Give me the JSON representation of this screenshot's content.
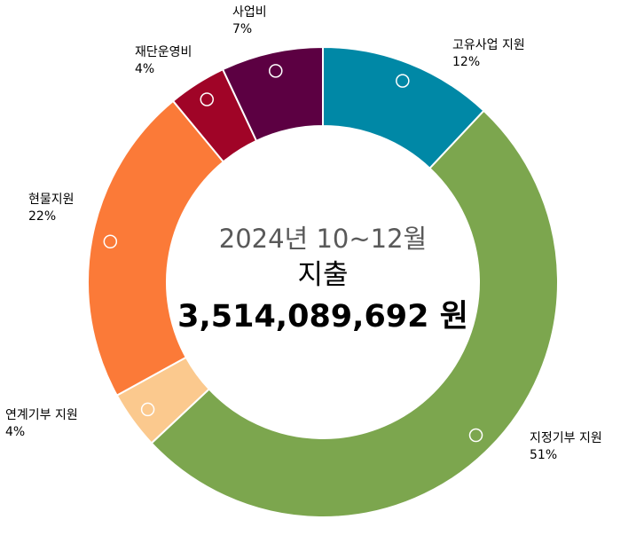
{
  "chart_data": {
    "type": "pie",
    "style": "donut",
    "center": {
      "period": "2024년 10~12월",
      "subtitle": "지출",
      "total": "3,514,089,692 원"
    },
    "slices": [
      {
        "label": "고유사업 지원",
        "value": 12,
        "value_label": "12%",
        "color": "#0088A6"
      },
      {
        "label": "지정기부 지원",
        "value": 51,
        "value_label": "51%",
        "color": "#7CA64E"
      },
      {
        "label": "연계기부 지원",
        "value": 4,
        "value_label": "4%",
        "color": "#FBC98E"
      },
      {
        "label": "현물지원",
        "value": 22,
        "value_label": "22%",
        "color": "#FB7A38"
      },
      {
        "label": "재단운영비",
        "value": 4,
        "value_label": "4%",
        "color": "#A00427"
      },
      {
        "label": "사업비",
        "value": 7,
        "value_label": "7%",
        "color": "#5C0042"
      }
    ]
  }
}
